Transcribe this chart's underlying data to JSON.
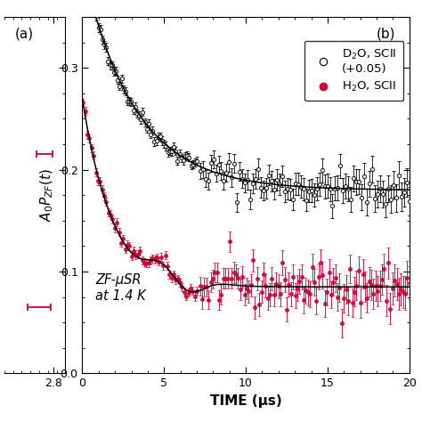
{
  "title_b": "(b)",
  "title_a": "(a)",
  "xlabel": "TIME (μs)",
  "annotation": "ZF-μSR\nat 1.4 K",
  "xlim": [
    0,
    20
  ],
  "ylim": [
    0,
    0.35
  ],
  "yticks": [
    0,
    0.1,
    0.2,
    0.3
  ],
  "xticks": [
    0,
    5,
    10,
    15,
    20
  ],
  "background_color": "#ffffff",
  "d2o_color": "#111111",
  "h2o_color": "#cc0033",
  "fit_color": "#000000",
  "panel_a_error_color": "#cc0033"
}
